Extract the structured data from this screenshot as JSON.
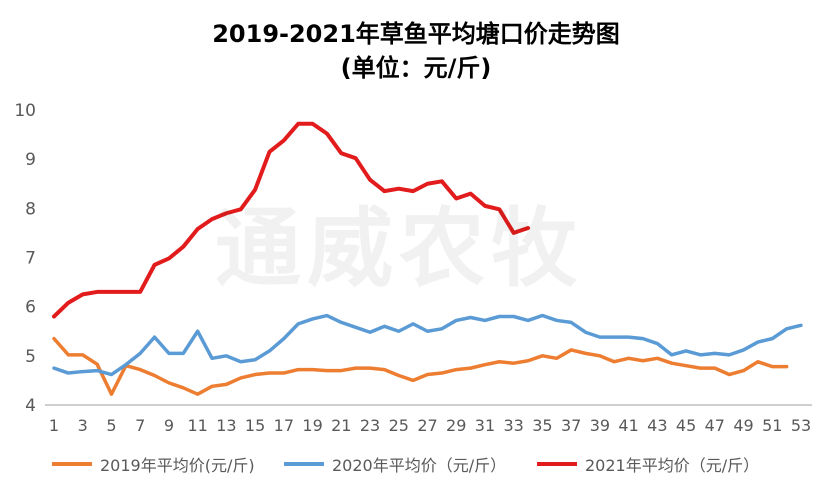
{
  "chart_data": {
    "type": "line",
    "title": "2019-2021年草鱼平均塘口价走势图",
    "subtitle": "(单位：元/斤)",
    "watermark": "通威农牧",
    "xlabel": "",
    "ylabel": "",
    "ylim": [
      4,
      10
    ],
    "yticks": [
      4,
      5,
      6,
      7,
      8,
      9,
      10
    ],
    "xlim": [
      1,
      53
    ],
    "xticks": [
      1,
      3,
      5,
      7,
      9,
      11,
      13,
      15,
      17,
      19,
      21,
      23,
      25,
      27,
      29,
      31,
      33,
      35,
      37,
      39,
      41,
      43,
      45,
      47,
      49,
      51,
      53
    ],
    "grid": false,
    "legend_position": "bottom",
    "series": [
      {
        "name": "2019年平均价(元/斤)",
        "color": "#ED7D31",
        "x": [
          1,
          2,
          3,
          4,
          5,
          6,
          7,
          8,
          9,
          10,
          11,
          12,
          13,
          14,
          15,
          16,
          17,
          18,
          19,
          20,
          21,
          22,
          23,
          24,
          25,
          26,
          27,
          28,
          29,
          30,
          31,
          32,
          33,
          34,
          35,
          36,
          37,
          38,
          39,
          40,
          41,
          42,
          43,
          44,
          45,
          46,
          47,
          48,
          49,
          50,
          51,
          52
        ],
        "values": [
          5.35,
          5.02,
          5.02,
          4.83,
          4.22,
          4.8,
          4.72,
          4.6,
          4.45,
          4.35,
          4.22,
          4.38,
          4.42,
          4.55,
          4.62,
          4.65,
          4.65,
          4.72,
          4.72,
          4.7,
          4.7,
          4.75,
          4.75,
          4.72,
          4.6,
          4.5,
          4.62,
          4.65,
          4.72,
          4.75,
          4.82,
          4.88,
          4.85,
          4.9,
          5.0,
          4.95,
          5.12,
          5.05,
          5.0,
          4.88,
          4.95,
          4.9,
          4.95,
          4.85,
          4.8,
          4.75,
          4.75,
          4.62,
          4.7,
          4.88,
          4.78,
          4.78
        ]
      },
      {
        "name": "2020年平均价（元/斤）",
        "color": "#5B9BD5",
        "x": [
          1,
          2,
          3,
          4,
          5,
          6,
          7,
          8,
          9,
          10,
          11,
          12,
          13,
          14,
          15,
          16,
          17,
          18,
          19,
          20,
          21,
          22,
          23,
          24,
          25,
          26,
          27,
          28,
          29,
          30,
          31,
          32,
          33,
          34,
          35,
          36,
          37,
          38,
          39,
          40,
          41,
          42,
          43,
          44,
          45,
          46,
          47,
          48,
          49,
          50,
          51,
          52,
          53
        ],
        "values": [
          4.75,
          4.65,
          4.68,
          4.7,
          4.62,
          4.82,
          5.05,
          5.38,
          5.05,
          5.05,
          5.5,
          4.95,
          5.0,
          4.88,
          4.92,
          5.1,
          5.35,
          5.65,
          5.75,
          5.82,
          5.68,
          5.58,
          5.48,
          5.6,
          5.5,
          5.65,
          5.5,
          5.55,
          5.72,
          5.78,
          5.72,
          5.8,
          5.8,
          5.72,
          5.82,
          5.72,
          5.68,
          5.48,
          5.38,
          5.38,
          5.38,
          5.35,
          5.25,
          5.02,
          5.1,
          5.02,
          5.05,
          5.02,
          5.12,
          5.28,
          5.35,
          5.55,
          5.62
        ]
      },
      {
        "name": "2021年平均价（元/斤）",
        "color": "#E21C1C",
        "x": [
          1,
          2,
          3,
          4,
          5,
          6,
          7,
          8,
          9,
          10,
          11,
          12,
          13,
          14,
          15,
          16,
          17,
          18,
          19,
          20,
          21,
          22,
          23,
          24,
          25,
          26,
          27,
          28,
          29,
          30,
          31,
          32,
          33,
          34
        ],
        "values": [
          5.8,
          6.08,
          6.25,
          6.3,
          6.3,
          6.3,
          6.3,
          6.85,
          6.98,
          7.22,
          7.58,
          7.78,
          7.9,
          7.98,
          8.38,
          9.15,
          9.38,
          9.72,
          9.72,
          9.52,
          9.12,
          9.02,
          8.58,
          8.35,
          8.4,
          8.35,
          8.5,
          8.55,
          8.2,
          8.3,
          8.05,
          7.98,
          7.5,
          7.6
        ]
      }
    ]
  }
}
